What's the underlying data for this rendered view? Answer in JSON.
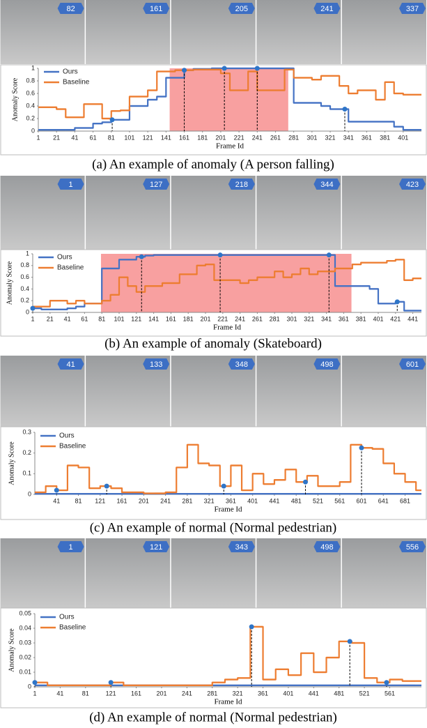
{
  "chart_data": [
    {
      "type": "line",
      "caption": "(a) An example  of anomaly (A person falling)",
      "frames": [
        82,
        161,
        205,
        241,
        337
      ],
      "xlabel": "Frame Id",
      "ylabel": "Anomaly Score",
      "xlim": [
        1,
        421
      ],
      "ylim": [
        0,
        1
      ],
      "xticks": [
        1,
        21,
        41,
        61,
        81,
        101,
        121,
        141,
        161,
        181,
        201,
        221,
        241,
        261,
        281,
        301,
        321,
        341,
        361,
        381,
        401
      ],
      "yticks": [
        0,
        0.2,
        0.4,
        0.6,
        0.8,
        1
      ],
      "shaded_range": [
        145,
        275
      ],
      "markers_on": "Ours",
      "legend": "upper left",
      "x": [
        1,
        11,
        21,
        31,
        41,
        51,
        61,
        71,
        81,
        91,
        101,
        111,
        121,
        131,
        141,
        151,
        161,
        171,
        181,
        191,
        201,
        211,
        221,
        231,
        241,
        251,
        261,
        271,
        281,
        291,
        301,
        311,
        321,
        331,
        341,
        351,
        361,
        371,
        381,
        391,
        401,
        411
      ],
      "series": [
        {
          "name": "Ours",
          "color": "#4472c4",
          "values": [
            0.02,
            0.02,
            0.02,
            0.02,
            0.05,
            0.05,
            0.12,
            0.14,
            0.18,
            0.18,
            0.4,
            0.4,
            0.5,
            0.55,
            0.85,
            0.85,
            0.97,
            0.99,
            0.99,
            1,
            1,
            1,
            1,
            1,
            1,
            1,
            1,
            1,
            0.45,
            0.45,
            0.45,
            0.4,
            0.35,
            0.35,
            0.15,
            0.15,
            0.15,
            0.15,
            0.15,
            0.07,
            0.02,
            0.02
          ]
        },
        {
          "name": "Baseline",
          "color": "#ed7d31",
          "values": [
            0.38,
            0.38,
            0.35,
            0.22,
            0.22,
            0.43,
            0.43,
            0.2,
            0.32,
            0.33,
            0.55,
            0.55,
            0.65,
            0.95,
            0.95,
            0.97,
            0.97,
            0.98,
            0.98,
            0.98,
            0.92,
            0.65,
            0.65,
            0.95,
            0.65,
            0.65,
            0.65,
            0.98,
            0.85,
            0.85,
            0.82,
            0.88,
            0.88,
            0.72,
            0.6,
            0.65,
            0.65,
            0.5,
            0.78,
            0.6,
            0.58,
            0.58
          ]
        }
      ]
    },
    {
      "type": "line",
      "caption": "(b) An example  of anomaly (Skateboard)",
      "frames": [
        1,
        127,
        218,
        344,
        423
      ],
      "xlabel": "Frame Id",
      "ylabel": "Anomaly Score",
      "xlim": [
        1,
        451
      ],
      "ylim": [
        0,
        1
      ],
      "xticks": [
        1,
        21,
        41,
        61,
        81,
        101,
        121,
        141,
        161,
        181,
        201,
        221,
        241,
        261,
        281,
        301,
        321,
        341,
        361,
        381,
        401,
        421,
        441
      ],
      "yticks": [
        0,
        0.2,
        0.4,
        0.6,
        0.8,
        1
      ],
      "shaded_range": [
        80,
        370
      ],
      "markers_on": "Ours",
      "legend": "upper left",
      "x": [
        1,
        11,
        21,
        31,
        41,
        51,
        61,
        71,
        81,
        91,
        101,
        111,
        121,
        131,
        141,
        151,
        161,
        171,
        181,
        191,
        201,
        211,
        221,
        231,
        241,
        251,
        261,
        271,
        281,
        291,
        301,
        311,
        321,
        331,
        341,
        351,
        361,
        371,
        381,
        391,
        401,
        411,
        421,
        431,
        441
      ],
      "series": [
        {
          "name": "Ours",
          "color": "#4472c4",
          "values": [
            0.07,
            0.05,
            0.05,
            0.05,
            0.07,
            0.1,
            0.15,
            0.15,
            0.75,
            0.75,
            0.9,
            0.9,
            0.95,
            0.97,
            0.98,
            0.98,
            0.98,
            0.98,
            0.98,
            0.98,
            0.98,
            0.98,
            0.98,
            0.98,
            0.98,
            0.98,
            0.98,
            0.98,
            0.98,
            0.98,
            0.98,
            0.98,
            0.98,
            0.98,
            0.98,
            0.45,
            0.45,
            0.45,
            0.45,
            0.4,
            0.15,
            0.15,
            0.18,
            0.03,
            0.03
          ]
        },
        {
          "name": "Baseline",
          "color": "#ed7d31",
          "values": [
            0.1,
            0.1,
            0.2,
            0.2,
            0.15,
            0.2,
            0.15,
            0.15,
            0.2,
            0.3,
            0.6,
            0.45,
            0.35,
            0.45,
            0.45,
            0.5,
            0.5,
            0.65,
            0.65,
            0.8,
            0.82,
            0.55,
            0.55,
            0.55,
            0.5,
            0.55,
            0.6,
            0.6,
            0.7,
            0.6,
            0.65,
            0.75,
            0.65,
            0.7,
            0.7,
            0.75,
            0.75,
            0.82,
            0.85,
            0.85,
            0.85,
            0.88,
            0.9,
            0.55,
            0.58
          ]
        }
      ]
    },
    {
      "type": "line",
      "caption": "(c) An example  of normal (Normal pedestrian)",
      "frames": [
        41,
        133,
        348,
        498,
        601
      ],
      "xlabel": "Frame Id",
      "ylabel": "Anomaly Score",
      "xlim": [
        1,
        711
      ],
      "ylim": [
        0,
        0.3
      ],
      "xticks": [
        41,
        81,
        121,
        161,
        201,
        241,
        281,
        321,
        361,
        401,
        441,
        481,
        521,
        561,
        601,
        641,
        681
      ],
      "yticks": [
        0,
        0.1,
        0.2,
        0.3
      ],
      "markers_on": "Baseline",
      "legend": "upper left",
      "x": [
        1,
        21,
        41,
        61,
        81,
        101,
        121,
        141,
        161,
        181,
        201,
        221,
        241,
        261,
        281,
        301,
        321,
        341,
        361,
        381,
        401,
        421,
        441,
        461,
        481,
        501,
        521,
        541,
        561,
        581,
        601,
        621,
        641,
        661,
        681,
        701
      ],
      "series": [
        {
          "name": "Ours",
          "color": "#4472c4",
          "values": [
            0.003,
            0.003,
            0.003,
            0.003,
            0.003,
            0.003,
            0.003,
            0.003,
            0.003,
            0.003,
            0.003,
            0.003,
            0.003,
            0.003,
            0.003,
            0.003,
            0.003,
            0.003,
            0.003,
            0.003,
            0.003,
            0.003,
            0.003,
            0.003,
            0.003,
            0.003,
            0.003,
            0.003,
            0.003,
            0.003,
            0.003,
            0.003,
            0.003,
            0.003,
            0.003,
            0.003
          ]
        },
        {
          "name": "Baseline",
          "color": "#ed7d31",
          "values": [
            0.01,
            0.04,
            0.02,
            0.14,
            0.13,
            0.03,
            0.04,
            0.03,
            0.01,
            0.01,
            0.005,
            0.005,
            0.01,
            0.13,
            0.24,
            0.15,
            0.14,
            0.04,
            0.14,
            0.02,
            0.1,
            0.05,
            0.07,
            0.12,
            0.06,
            0.09,
            0.04,
            0.04,
            0.06,
            0.24,
            0.225,
            0.22,
            0.15,
            0.1,
            0.06,
            0.02
          ]
        }
      ]
    },
    {
      "type": "line",
      "caption": "(d) An example  of normal (Normal pedestrian)",
      "frames": [
        1,
        121,
        343,
        498,
        556
      ],
      "xlabel": "Frame Id",
      "ylabel": "Anomaly Score",
      "xlim": [
        1,
        611
      ],
      "ylim": [
        0,
        0.05
      ],
      "xticks": [
        1,
        41,
        81,
        121,
        161,
        201,
        241,
        281,
        321,
        361,
        401,
        441,
        481,
        521,
        561
      ],
      "yticks": [
        0,
        0.01,
        0.02,
        0.03,
        0.04,
        0.05
      ],
      "markers_on": "Baseline",
      "legend": "upper left",
      "x": [
        1,
        21,
        41,
        61,
        81,
        101,
        121,
        141,
        161,
        181,
        201,
        221,
        241,
        261,
        281,
        301,
        321,
        341,
        361,
        381,
        401,
        421,
        441,
        461,
        481,
        501,
        521,
        541,
        561,
        581,
        601
      ],
      "series": [
        {
          "name": "Ours",
          "color": "#4472c4",
          "values": [
            0.001,
            0.001,
            0.001,
            0.001,
            0.001,
            0.001,
            0.001,
            0.001,
            0.001,
            0.001,
            0.001,
            0.001,
            0.001,
            0.001,
            0.001,
            0.001,
            0.001,
            0.001,
            0.001,
            0.001,
            0.001,
            0.001,
            0.001,
            0.001,
            0.001,
            0.001,
            0.001,
            0.001,
            0.001,
            0.001,
            0.001
          ]
        },
        {
          "name": "Baseline",
          "color": "#ed7d31",
          "values": [
            0.003,
            0.001,
            0.001,
            0.001,
            0.001,
            0.001,
            0.003,
            0.001,
            0.001,
            0.001,
            0.001,
            0.001,
            0.001,
            0.001,
            0.003,
            0.005,
            0.006,
            0.041,
            0.005,
            0.012,
            0.008,
            0.023,
            0.01,
            0.02,
            0.031,
            0.03,
            0.006,
            0.003,
            0.005,
            0.004,
            0.004
          ]
        }
      ]
    }
  ]
}
